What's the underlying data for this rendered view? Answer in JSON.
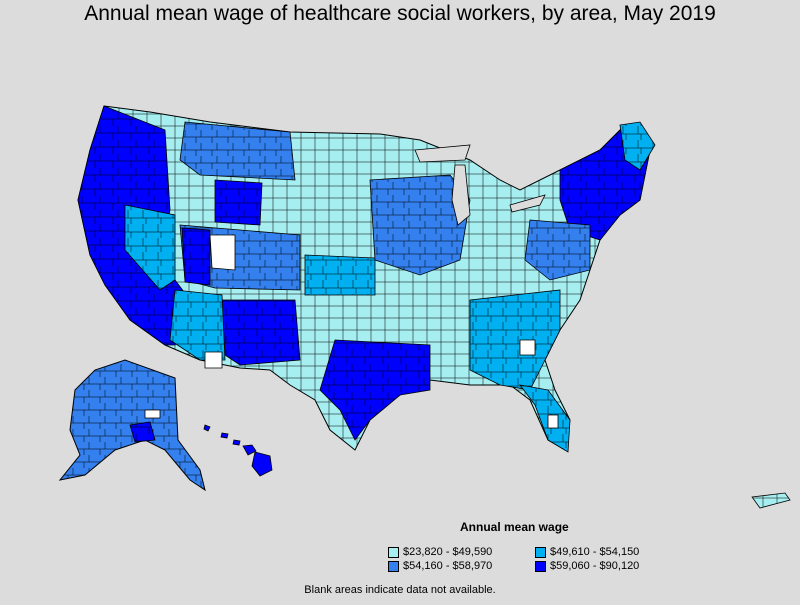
{
  "title": "Annual mean wage of healthcare social workers, by area, May 2019",
  "legend": {
    "title": "Annual mean wage",
    "items": [
      {
        "label": "$23,820 - $49,590",
        "color": "#a6eef0"
      },
      {
        "label": "$49,610 - $54,150",
        "color": "#00b0f0"
      },
      {
        "label": "$54,160 - $58,970",
        "color": "#3380ee"
      },
      {
        "label": "$59,060 - $90,120",
        "color": "#0000ff"
      }
    ]
  },
  "note": "Blank areas indicate data not available.",
  "colors": {
    "background": "#dcdcdc",
    "no_data": "#ffffff",
    "border": "#000000"
  }
}
